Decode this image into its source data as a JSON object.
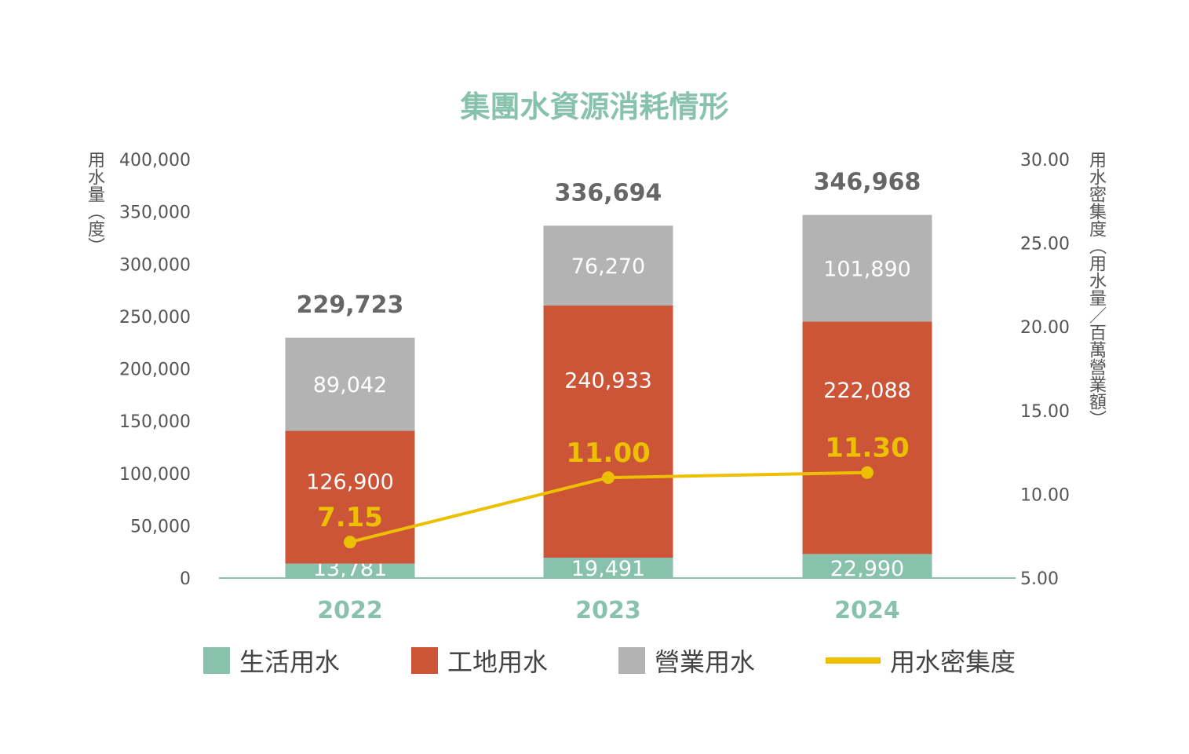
{
  "chart_data": {
    "type": "bar",
    "stacked": true,
    "title": "集團水資源消耗情形",
    "ylabel": "用水量（度）",
    "y2label": "用水密集度（用水量／百萬營業額）",
    "categories": [
      "2022",
      "2023",
      "2024"
    ],
    "ylim": [
      0,
      400000
    ],
    "yticks": [
      "0",
      "50,000",
      "100,000",
      "150,000",
      "200,000",
      "250,000",
      "300,000",
      "350,000",
      "400,000"
    ],
    "y2lim": [
      5,
      30
    ],
    "y2ticks": [
      "5.00",
      "10.00",
      "15.00",
      "20.00",
      "25.00",
      "30.00"
    ],
    "series": [
      {
        "name": "生活用水",
        "color": "#88c2ad",
        "values": [
          13781,
          19491,
          22990
        ],
        "labels": [
          "13,781",
          "19,491",
          "22,990"
        ]
      },
      {
        "name": "工地用水",
        "color": "#cc5537",
        "values": [
          126900,
          240933,
          222088
        ],
        "labels": [
          "126,900",
          "240,933",
          "222,088"
        ]
      },
      {
        "name": "營業用水",
        "color": "#b3b3b3",
        "values": [
          89042,
          76270,
          101890
        ],
        "labels": [
          "89,042",
          "76,270",
          "101,890"
        ]
      }
    ],
    "totals": [
      "229,723",
      "336,694",
      "346,968"
    ],
    "line": {
      "name": "用水密集度",
      "color": "#ecc000",
      "axis": "right",
      "values": [
        7.15,
        11.0,
        11.3
      ],
      "labels": [
        "7.15",
        "11.00",
        "11.30"
      ]
    },
    "legend": "bottom"
  }
}
